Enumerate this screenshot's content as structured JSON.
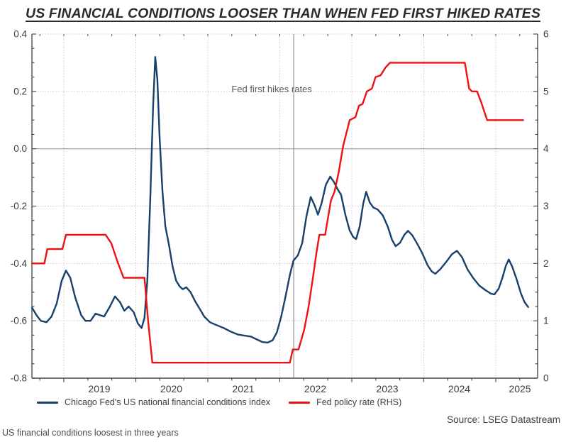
{
  "source": "Source: LSEG Datastream",
  "caption": "US financial conditions loosest in three years",
  "chart_data": {
    "type": "line",
    "title": "US FINANCIAL CONDITIONS LOOSER THAN WHEN FED FIRST HIKED RATES",
    "annotation": {
      "label": "Fed first hikes rates",
      "x": 2022.193
    },
    "left_axis": {
      "min": -0.8,
      "max": 0.4,
      "tick_step": 0.2,
      "minor_step": 0.05,
      "tick_labels": [
        "0.4",
        "0.2",
        "0.0",
        "-0.2",
        "-0.4",
        "-0.6",
        "-0.8"
      ],
      "tick_values": [
        0.4,
        0.2,
        0.0,
        -0.2,
        -0.4,
        -0.6,
        -0.8
      ],
      "zero_line": 0.0
    },
    "right_axis": {
      "min": 0,
      "max": 6,
      "tick_step": 1,
      "minor_step": 0.25,
      "tick_labels": [
        "6",
        "5",
        "4",
        "3",
        "2",
        "1",
        "0"
      ],
      "tick_values": [
        6,
        5,
        4,
        3,
        2,
        1,
        0
      ]
    },
    "x_axis": {
      "start": 2018.56,
      "end": 2025.58,
      "year_ticks": [
        2019,
        2020,
        2021,
        2022,
        2023,
        2024,
        2025
      ],
      "year_labels": [
        "2019",
        "2020",
        "2021",
        "2022",
        "2023",
        "2024",
        "2025"
      ]
    },
    "grid": {
      "horizontal": "dotted",
      "vertical": "dotted"
    },
    "legend": [
      {
        "label": "Chicago Fed's US national financial conditions index",
        "color": "#17406b"
      },
      {
        "label": "Fed policy rate (RHS)",
        "color": "#ee1111"
      }
    ],
    "series": [
      {
        "name": "Chicago Fed's US national financial conditions index",
        "axis": "left",
        "color": "#17406b",
        "points": [
          [
            2018.56,
            -0.555
          ],
          [
            2018.62,
            -0.58
          ],
          [
            2018.68,
            -0.6
          ],
          [
            2018.76,
            -0.605
          ],
          [
            2018.83,
            -0.585
          ],
          [
            2018.9,
            -0.54
          ],
          [
            2018.97,
            -0.46
          ],
          [
            2019.03,
            -0.425
          ],
          [
            2019.09,
            -0.45
          ],
          [
            2019.16,
            -0.52
          ],
          [
            2019.24,
            -0.58
          ],
          [
            2019.3,
            -0.6
          ],
          [
            2019.37,
            -0.6
          ],
          [
            2019.44,
            -0.575
          ],
          [
            2019.5,
            -0.58
          ],
          [
            2019.56,
            -0.585
          ],
          [
            2019.64,
            -0.55
          ],
          [
            2019.71,
            -0.515
          ],
          [
            2019.78,
            -0.535
          ],
          [
            2019.84,
            -0.565
          ],
          [
            2019.9,
            -0.55
          ],
          [
            2019.97,
            -0.57
          ],
          [
            2020.03,
            -0.61
          ],
          [
            2020.08,
            -0.625
          ],
          [
            2020.12,
            -0.59
          ],
          [
            2020.16,
            -0.46
          ],
          [
            2020.2,
            -0.18
          ],
          [
            2020.24,
            0.15
          ],
          [
            2020.27,
            0.32
          ],
          [
            2020.3,
            0.24
          ],
          [
            2020.33,
            0.04
          ],
          [
            2020.37,
            -0.15
          ],
          [
            2020.41,
            -0.27
          ],
          [
            2020.46,
            -0.335
          ],
          [
            2020.51,
            -0.41
          ],
          [
            2020.56,
            -0.46
          ],
          [
            2020.61,
            -0.48
          ],
          [
            2020.65,
            -0.49
          ],
          [
            2020.7,
            -0.483
          ],
          [
            2020.76,
            -0.5
          ],
          [
            2020.82,
            -0.53
          ],
          [
            2020.88,
            -0.555
          ],
          [
            2020.95,
            -0.585
          ],
          [
            2021.03,
            -0.605
          ],
          [
            2021.12,
            -0.615
          ],
          [
            2021.22,
            -0.625
          ],
          [
            2021.32,
            -0.638
          ],
          [
            2021.42,
            -0.648
          ],
          [
            2021.52,
            -0.652
          ],
          [
            2021.6,
            -0.655
          ],
          [
            2021.68,
            -0.665
          ],
          [
            2021.76,
            -0.674
          ],
          [
            2021.83,
            -0.676
          ],
          [
            2021.9,
            -0.668
          ],
          [
            2021.96,
            -0.64
          ],
          [
            2022.02,
            -0.585
          ],
          [
            2022.08,
            -0.515
          ],
          [
            2022.14,
            -0.44
          ],
          [
            2022.19,
            -0.39
          ],
          [
            2022.25,
            -0.372
          ],
          [
            2022.31,
            -0.33
          ],
          [
            2022.37,
            -0.235
          ],
          [
            2022.43,
            -0.168
          ],
          [
            2022.48,
            -0.195
          ],
          [
            2022.53,
            -0.23
          ],
          [
            2022.58,
            -0.19
          ],
          [
            2022.64,
            -0.125
          ],
          [
            2022.7,
            -0.097
          ],
          [
            2022.75,
            -0.115
          ],
          [
            2022.8,
            -0.14
          ],
          [
            2022.85,
            -0.16
          ],
          [
            2022.91,
            -0.23
          ],
          [
            2022.97,
            -0.285
          ],
          [
            2023.02,
            -0.308
          ],
          [
            2023.06,
            -0.315
          ],
          [
            2023.11,
            -0.27
          ],
          [
            2023.16,
            -0.19
          ],
          [
            2023.2,
            -0.15
          ],
          [
            2023.25,
            -0.188
          ],
          [
            2023.3,
            -0.205
          ],
          [
            2023.36,
            -0.212
          ],
          [
            2023.43,
            -0.232
          ],
          [
            2023.5,
            -0.272
          ],
          [
            2023.56,
            -0.318
          ],
          [
            2023.61,
            -0.34
          ],
          [
            2023.67,
            -0.328
          ],
          [
            2023.73,
            -0.3
          ],
          [
            2023.78,
            -0.286
          ],
          [
            2023.84,
            -0.302
          ],
          [
            2023.91,
            -0.332
          ],
          [
            2023.98,
            -0.365
          ],
          [
            2024.05,
            -0.405
          ],
          [
            2024.11,
            -0.428
          ],
          [
            2024.16,
            -0.436
          ],
          [
            2024.23,
            -0.42
          ],
          [
            2024.31,
            -0.395
          ],
          [
            2024.39,
            -0.368
          ],
          [
            2024.46,
            -0.356
          ],
          [
            2024.53,
            -0.378
          ],
          [
            2024.61,
            -0.422
          ],
          [
            2024.69,
            -0.452
          ],
          [
            2024.77,
            -0.477
          ],
          [
            2024.85,
            -0.492
          ],
          [
            2024.93,
            -0.505
          ],
          [
            2024.98,
            -0.508
          ],
          [
            2025.04,
            -0.488
          ],
          [
            2025.09,
            -0.452
          ],
          [
            2025.14,
            -0.408
          ],
          [
            2025.18,
            -0.386
          ],
          [
            2025.23,
            -0.412
          ],
          [
            2025.29,
            -0.455
          ],
          [
            2025.35,
            -0.505
          ],
          [
            2025.4,
            -0.535
          ],
          [
            2025.45,
            -0.552
          ]
        ]
      },
      {
        "name": "Fed policy rate (RHS)",
        "axis": "right",
        "color": "#ee1111",
        "points": [
          [
            2018.56,
            2.0
          ],
          [
            2018.73,
            2.0
          ],
          [
            2018.77,
            2.25
          ],
          [
            2018.98,
            2.25
          ],
          [
            2019.03,
            2.5
          ],
          [
            2019.58,
            2.5
          ],
          [
            2019.66,
            2.35
          ],
          [
            2019.74,
            2.05
          ],
          [
            2019.83,
            1.75
          ],
          [
            2020.12,
            1.75
          ],
          [
            2020.17,
            1.0
          ],
          [
            2020.23,
            0.27
          ],
          [
            2022.14,
            0.27
          ],
          [
            2022.18,
            0.5
          ],
          [
            2022.26,
            0.5
          ],
          [
            2022.34,
            0.85
          ],
          [
            2022.4,
            1.25
          ],
          [
            2022.46,
            1.75
          ],
          [
            2022.51,
            2.2
          ],
          [
            2022.55,
            2.5
          ],
          [
            2022.63,
            2.5
          ],
          [
            2022.71,
            3.1
          ],
          [
            2022.76,
            3.25
          ],
          [
            2022.82,
            3.6
          ],
          [
            2022.88,
            4.05
          ],
          [
            2022.93,
            4.3
          ],
          [
            2022.97,
            4.5
          ],
          [
            2023.05,
            4.55
          ],
          [
            2023.1,
            4.75
          ],
          [
            2023.15,
            4.78
          ],
          [
            2023.21,
            5.0
          ],
          [
            2023.28,
            5.05
          ],
          [
            2023.33,
            5.25
          ],
          [
            2023.4,
            5.28
          ],
          [
            2023.47,
            5.42
          ],
          [
            2023.53,
            5.5
          ],
          [
            2024.57,
            5.5
          ],
          [
            2024.63,
            5.05
          ],
          [
            2024.67,
            5.0
          ],
          [
            2024.74,
            5.0
          ],
          [
            2024.8,
            4.8
          ],
          [
            2024.88,
            4.5
          ],
          [
            2025.38,
            4.5
          ]
        ]
      }
    ],
    "style_colors": {
      "grid": "#c9c9c9",
      "spine": "#4d4d4d",
      "tick": "#4d4d4d",
      "axis_text": "#3c3c3c",
      "refline": "#999999",
      "annotation_text": "#595959"
    }
  }
}
